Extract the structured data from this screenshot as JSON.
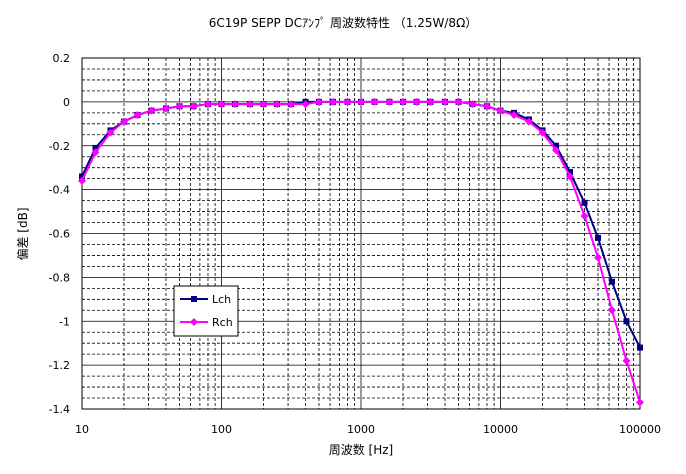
{
  "chart_data": {
    "type": "line",
    "title": "6C19P SEPP DCｱﾝﾌﾟ 周波数特性 （1.25W/8Ω）",
    "xlabel": "周波数 [Hz]",
    "ylabel": "偏差 [dB]",
    "x_scale": "log",
    "xlim": [
      10,
      100000
    ],
    "ylim": [
      -1.4,
      0.2
    ],
    "y_ticks": [
      "0.2",
      "0",
      "-0.2",
      "-0.4",
      "-0.6",
      "-0.8",
      "-1",
      "-1.2",
      "-1.4"
    ],
    "x_ticks": [
      "10",
      "100",
      "1000",
      "10000",
      "100000"
    ],
    "grid": true,
    "legend_position": "lower-left",
    "series": [
      {
        "name": "Lch",
        "color": "#000080",
        "marker": "square",
        "x": [
          10,
          12.5,
          16,
          20,
          25,
          31.5,
          40,
          50,
          63,
          80,
          100,
          125,
          160,
          200,
          250,
          315,
          400,
          500,
          630,
          800,
          1000,
          1250,
          1600,
          2000,
          2500,
          3150,
          4000,
          5000,
          6300,
          8000,
          10000,
          12500,
          16000,
          20000,
          25000,
          31500,
          40000,
          50000,
          63000,
          80000,
          100000
        ],
        "y": [
          -0.34,
          -0.21,
          -0.13,
          -0.09,
          -0.06,
          -0.04,
          -0.03,
          -0.02,
          -0.02,
          -0.01,
          -0.01,
          -0.01,
          -0.01,
          -0.01,
          -0.01,
          -0.01,
          0,
          0,
          0,
          0,
          0,
          0,
          0,
          0,
          0,
          0,
          0,
          0,
          -0.01,
          -0.02,
          -0.04,
          -0.05,
          -0.08,
          -0.13,
          -0.2,
          -0.32,
          -0.46,
          -0.62,
          -0.82,
          -1.0,
          -1.12
        ]
      },
      {
        "name": "Rch",
        "color": "#ff00ff",
        "marker": "diamond",
        "x": [
          10,
          12.5,
          16,
          20,
          25,
          31.5,
          40,
          50,
          63,
          80,
          100,
          125,
          160,
          200,
          250,
          315,
          400,
          500,
          630,
          800,
          1000,
          1250,
          1600,
          2000,
          2500,
          3150,
          4000,
          5000,
          6300,
          8000,
          10000,
          12500,
          16000,
          20000,
          25000,
          31500,
          40000,
          50000,
          63000,
          80000,
          100000
        ],
        "y": [
          -0.36,
          -0.23,
          -0.14,
          -0.09,
          -0.06,
          -0.04,
          -0.03,
          -0.02,
          -0.02,
          -0.01,
          -0.01,
          -0.01,
          -0.01,
          -0.01,
          -0.01,
          -0.01,
          -0.01,
          0,
          0,
          0,
          0,
          0,
          0,
          0,
          0,
          0,
          0,
          0,
          -0.01,
          -0.02,
          -0.04,
          -0.06,
          -0.09,
          -0.14,
          -0.22,
          -0.34,
          -0.52,
          -0.71,
          -0.95,
          -1.18,
          -1.37
        ]
      }
    ]
  }
}
